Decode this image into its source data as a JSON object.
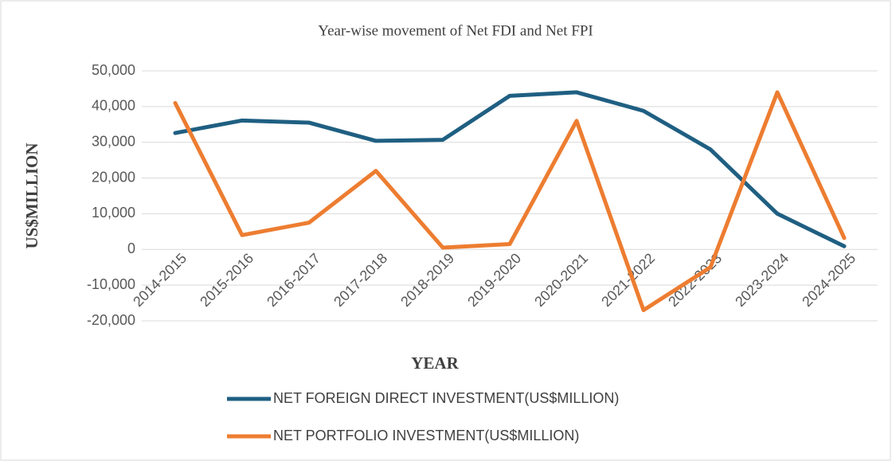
{
  "chart_data": {
    "type": "line",
    "title": "Year-wise movement of Net FDI and Net FPI",
    "x_label": "YEAR",
    "y_label": "US$MILLION",
    "categories": [
      "2014-2015",
      "2015-2016",
      "2016-2017",
      "2017-2018",
      "2018-2019",
      "2019-2020",
      "2020-2021",
      "2021-2022",
      "2022-2023",
      "2023-2024",
      "2024-2025"
    ],
    "series": [
      {
        "name": "NET FOREIGN DIRECT INVESTMENT(US$MILLION)",
        "color": "#1f5f82",
        "values": [
          32600,
          36100,
          35500,
          30400,
          30700,
          43000,
          44000,
          38800,
          28000,
          10000,
          900
        ]
      },
      {
        "name": "NET PORTFOLIO INVESTMENT(US$MILLION)",
        "color": "#ed7d31",
        "values": [
          41000,
          4000,
          7500,
          22000,
          500,
          1500,
          36000,
          -17000,
          -5000,
          44000,
          3200
        ]
      }
    ],
    "ylim": [
      -20000,
      50000
    ],
    "yticks": [
      {
        "value": -20000,
        "label": "-20,000"
      },
      {
        "value": -10000,
        "label": "-10,000"
      },
      0,
      {
        "value": 10000,
        "label": "10,000"
      },
      {
        "value": 20000,
        "label": "20,000"
      },
      {
        "value": 30000,
        "label": "30,000"
      },
      {
        "value": 40000,
        "label": "40,000"
      },
      {
        "value": 50000,
        "label": "50,000"
      }
    ],
    "grid": true,
    "legend": "bottom"
  }
}
